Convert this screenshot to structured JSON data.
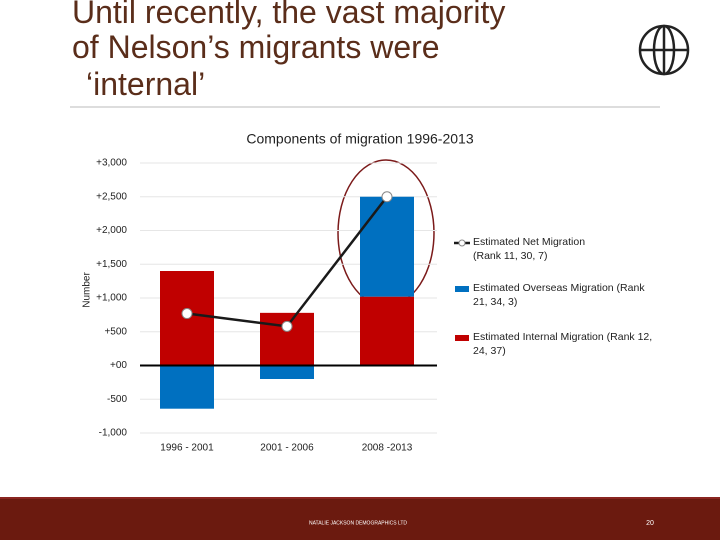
{
  "slide_title": [
    "Until recently, the vast majority",
    "of Nelson’s migrants were",
    "‘internal’"
  ],
  "footer": {
    "company": "NATALIE JACKSON DEMOGRAPHICS LTD",
    "page": "20"
  },
  "chart_data": {
    "type": "bar",
    "stacked": true,
    "title": "Components of migration 1996-2013",
    "ylabel": "Number",
    "categories": [
      "1996 - 2001",
      "2001 - 2006",
      "2008 -2013"
    ],
    "series": [
      {
        "name": "Estimated Internal Migration (Rank 12, 24, 37)",
        "color": "#c00000",
        "values": [
          1400,
          780,
          1020
        ]
      },
      {
        "name": "Estimated Overseas Migration (Rank 21, 34, 3)",
        "color": "#0070c0",
        "values": [
          -640,
          -200,
          1480
        ]
      },
      {
        "name": "Estimated Net Migration (Rank 11, 30, 7)",
        "type": "line",
        "color": "#1a1a1a",
        "values": [
          770,
          580,
          2500
        ]
      }
    ],
    "ylim": [
      -1000,
      3000
    ],
    "yticks": [
      {
        "value": 3000,
        "label": "+3,000"
      },
      {
        "value": 2500,
        "label": "+2,500"
      },
      {
        "value": 2000,
        "label": "+2,000"
      },
      {
        "value": 1500,
        "label": "+1,500"
      },
      {
        "value": 1000,
        "label": "+1,000"
      },
      {
        "value": 500,
        "label": "+500"
      },
      {
        "value": 0,
        "label": "+00"
      },
      -500,
      {
        "value": -1000,
        "label": "-1,000"
      }
    ],
    "grid": true
  }
}
